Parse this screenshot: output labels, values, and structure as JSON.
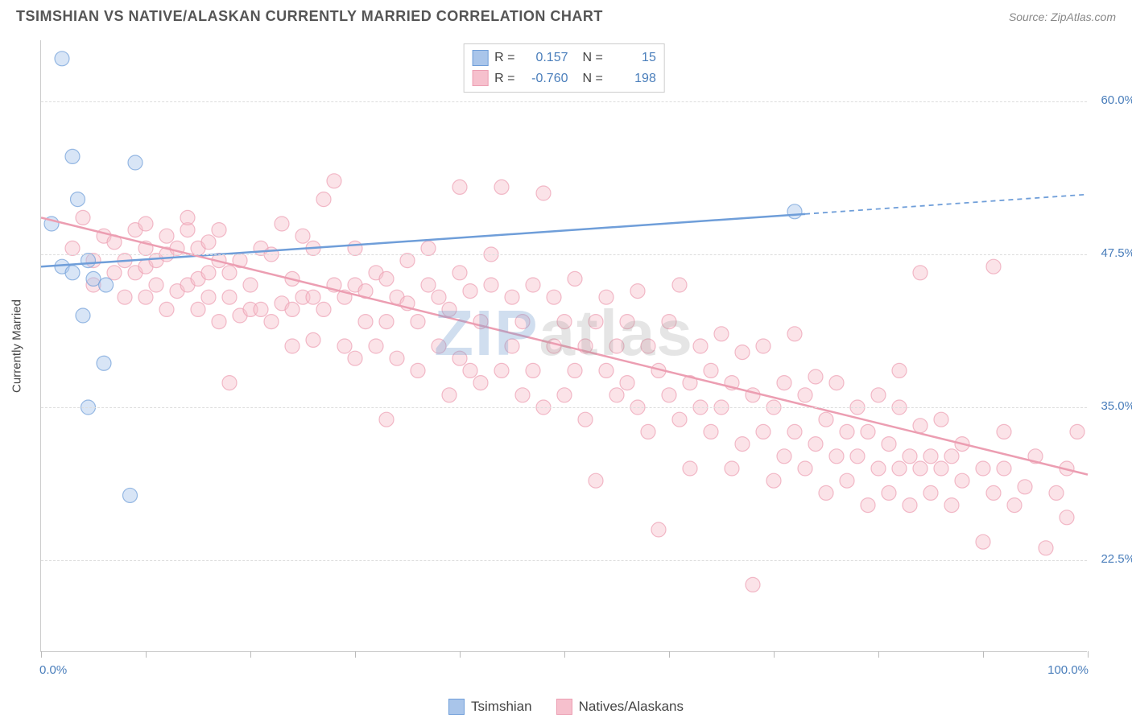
{
  "title": "TSIMSHIAN VS NATIVE/ALASKAN CURRENTLY MARRIED CORRELATION CHART",
  "source_label": "Source: ",
  "source_name": "ZipAtlas.com",
  "chart": {
    "type": "scatter",
    "ylabel": "Currently Married",
    "xlim": [
      0,
      100
    ],
    "ylim": [
      15,
      65
    ],
    "xtick_step": 10,
    "yticks": [
      22.5,
      35.0,
      47.5,
      60.0
    ],
    "ytick_labels": [
      "22.5%",
      "35.0%",
      "47.5%",
      "60.0%"
    ],
    "x_end_labels": [
      "0.0%",
      "100.0%"
    ],
    "background_color": "#ffffff",
    "grid_color": "#dddddd",
    "border_color": "#cccccc",
    "watermark": {
      "prefix": "ZIP",
      "suffix": "atlas"
    },
    "marker_radius": 9,
    "marker_opacity": 0.45,
    "line_width": 2.5
  },
  "series": [
    {
      "name": "Tsimshian",
      "color_fill": "#a9c5ea",
      "color_stroke": "#6f9ed9",
      "R": "0.157",
      "N": "15",
      "trend": {
        "x1": 0,
        "y1": 46.5,
        "x2": 73,
        "y2": 50.8,
        "x3": 100,
        "y3": 52.4,
        "solid_until": 73
      },
      "points": [
        [
          2,
          63.5
        ],
        [
          3,
          55.5
        ],
        [
          3.5,
          52
        ],
        [
          9,
          55
        ],
        [
          1,
          50
        ],
        [
          2,
          46.5
        ],
        [
          3,
          46
        ],
        [
          5,
          45.5
        ],
        [
          6.2,
          45
        ],
        [
          4,
          42.5
        ],
        [
          6,
          38.6
        ],
        [
          4.5,
          35
        ],
        [
          8.5,
          27.8
        ],
        [
          72,
          51
        ],
        [
          4.5,
          47
        ]
      ]
    },
    {
      "name": "Natives/Alaskans",
      "color_fill": "#f6c0cd",
      "color_stroke": "#ec9eb2",
      "R": "-0.760",
      "N": "198",
      "trend": {
        "x1": 0,
        "y1": 50.5,
        "x2": 100,
        "y2": 29.5
      },
      "points": [
        [
          3,
          48
        ],
        [
          4,
          50.5
        ],
        [
          5,
          47
        ],
        [
          5,
          45
        ],
        [
          6,
          49
        ],
        [
          7,
          46
        ],
        [
          7,
          48.5
        ],
        [
          8,
          44
        ],
        [
          8,
          47
        ],
        [
          9,
          46
        ],
        [
          9,
          49.5
        ],
        [
          10,
          44
        ],
        [
          10,
          46.5
        ],
        [
          10,
          48
        ],
        [
          10,
          50
        ],
        [
          11,
          47
        ],
        [
          11,
          45
        ],
        [
          12,
          43
        ],
        [
          12,
          47.5
        ],
        [
          12,
          49
        ],
        [
          13,
          44.5
        ],
        [
          13,
          48
        ],
        [
          14,
          45
        ],
        [
          14,
          49.5
        ],
        [
          14,
          50.5
        ],
        [
          15,
          43
        ],
        [
          15,
          45.5
        ],
        [
          15,
          48
        ],
        [
          16,
          44
        ],
        [
          16,
          46
        ],
        [
          16,
          48.5
        ],
        [
          17,
          42
        ],
        [
          17,
          47
        ],
        [
          17,
          49.5
        ],
        [
          18,
          44
        ],
        [
          18,
          46
        ],
        [
          18,
          37
        ],
        [
          19,
          42.5
        ],
        [
          19,
          47
        ],
        [
          20,
          43
        ],
        [
          20,
          45
        ],
        [
          21,
          48
        ],
        [
          21,
          43
        ],
        [
          22,
          42
        ],
        [
          22,
          47.5
        ],
        [
          23,
          43.5
        ],
        [
          23,
          50
        ],
        [
          24,
          40
        ],
        [
          24,
          43
        ],
        [
          24,
          45.5
        ],
        [
          25,
          44
        ],
        [
          25,
          49
        ],
        [
          26,
          40.5
        ],
        [
          26,
          44
        ],
        [
          26,
          48
        ],
        [
          27,
          52
        ],
        [
          27,
          43
        ],
        [
          28,
          53.5
        ],
        [
          28,
          45
        ],
        [
          29,
          40
        ],
        [
          29,
          44
        ],
        [
          30,
          39
        ],
        [
          30,
          45
        ],
        [
          30,
          48
        ],
        [
          31,
          42
        ],
        [
          31,
          44.5
        ],
        [
          32,
          40
        ],
        [
          32,
          46
        ],
        [
          33,
          34
        ],
        [
          33,
          42
        ],
        [
          33,
          45.5
        ],
        [
          34,
          39
        ],
        [
          34,
          44
        ],
        [
          35,
          43.5
        ],
        [
          35,
          47
        ],
        [
          36,
          38
        ],
        [
          36,
          42
        ],
        [
          37,
          45
        ],
        [
          37,
          48
        ],
        [
          38,
          40
        ],
        [
          38,
          44
        ],
        [
          39,
          36
        ],
        [
          39,
          43
        ],
        [
          40,
          53
        ],
        [
          40,
          39
        ],
        [
          40,
          46
        ],
        [
          41,
          38
        ],
        [
          41,
          44.5
        ],
        [
          42,
          37
        ],
        [
          42,
          42
        ],
        [
          43,
          45
        ],
        [
          43,
          47.5
        ],
        [
          44,
          53
        ],
        [
          44,
          38
        ],
        [
          45,
          40
        ],
        [
          45,
          44
        ],
        [
          46,
          36
        ],
        [
          46,
          42
        ],
        [
          47,
          38
        ],
        [
          47,
          45
        ],
        [
          48,
          52.5
        ],
        [
          48,
          35
        ],
        [
          49,
          40
        ],
        [
          49,
          44
        ],
        [
          50,
          36
        ],
        [
          50,
          42
        ],
        [
          51,
          38
        ],
        [
          51,
          45.5
        ],
        [
          52,
          34
        ],
        [
          52,
          40
        ],
        [
          53,
          29
        ],
        [
          53,
          42
        ],
        [
          54,
          38
        ],
        [
          54,
          44
        ],
        [
          55,
          36
        ],
        [
          55,
          40
        ],
        [
          56,
          37
        ],
        [
          56,
          42
        ],
        [
          57,
          35
        ],
        [
          57,
          44.5
        ],
        [
          58,
          33
        ],
        [
          58,
          40
        ],
        [
          59,
          25
        ],
        [
          59,
          38
        ],
        [
          60,
          36
        ],
        [
          60,
          42
        ],
        [
          61,
          34
        ],
        [
          61,
          45
        ],
        [
          62,
          30
        ],
        [
          62,
          37
        ],
        [
          63,
          35
        ],
        [
          63,
          40
        ],
        [
          64,
          33
        ],
        [
          64,
          38
        ],
        [
          65,
          35
        ],
        [
          65,
          41
        ],
        [
          66,
          30
        ],
        [
          66,
          37
        ],
        [
          67,
          32
        ],
        [
          67,
          39.5
        ],
        [
          68,
          20.5
        ],
        [
          68,
          36
        ],
        [
          69,
          33
        ],
        [
          69,
          40
        ],
        [
          70,
          29
        ],
        [
          70,
          35
        ],
        [
          71,
          31
        ],
        [
          71,
          37
        ],
        [
          72,
          33
        ],
        [
          72,
          41
        ],
        [
          73,
          30
        ],
        [
          73,
          36
        ],
        [
          74,
          32
        ],
        [
          74,
          37.5
        ],
        [
          75,
          28
        ],
        [
          75,
          34
        ],
        [
          76,
          31
        ],
        [
          76,
          37
        ],
        [
          77,
          29
        ],
        [
          77,
          33
        ],
        [
          78,
          31
        ],
        [
          78,
          35
        ],
        [
          79,
          27
        ],
        [
          79,
          33
        ],
        [
          80,
          30
        ],
        [
          80,
          36
        ],
        [
          81,
          28
        ],
        [
          81,
          32
        ],
        [
          82,
          30
        ],
        [
          82,
          35
        ],
        [
          82,
          38
        ],
        [
          83,
          27
        ],
        [
          83,
          31
        ],
        [
          84,
          30
        ],
        [
          84,
          33.5
        ],
        [
          84,
          46
        ],
        [
          85,
          28
        ],
        [
          85,
          31
        ],
        [
          86,
          30
        ],
        [
          86,
          34
        ],
        [
          87,
          27
        ],
        [
          87,
          31
        ],
        [
          88,
          29
        ],
        [
          88,
          32
        ],
        [
          90,
          24
        ],
        [
          90,
          30
        ],
        [
          91,
          46.5
        ],
        [
          91,
          28
        ],
        [
          92,
          30
        ],
        [
          92,
          33
        ],
        [
          93,
          27
        ],
        [
          94,
          28.5
        ],
        [
          95,
          31
        ],
        [
          96,
          23.5
        ],
        [
          97,
          28
        ],
        [
          98,
          30
        ],
        [
          98,
          26
        ],
        [
          99,
          33
        ]
      ]
    }
  ],
  "legend_top_labels": {
    "R": "R =",
    "N": "N ="
  },
  "bottom_legend_labels": [
    "Tsimshian",
    "Natives/Alaskans"
  ]
}
